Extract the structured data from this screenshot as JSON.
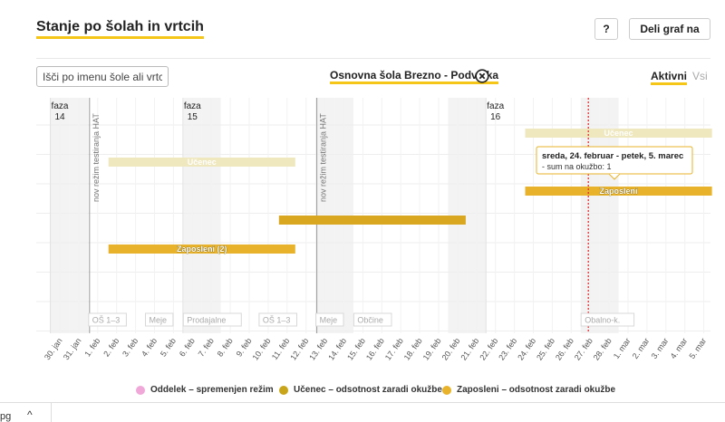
{
  "header": {
    "title": "Stanje po šolah in vrtcih",
    "help_label": "?",
    "share_label": "Deli graf na"
  },
  "filter": {
    "search_placeholder": "Išči po imenu šole ali vrtca",
    "selected_school": "Osnovna šola Brezno - Podvelka",
    "toggle_active": "Aktivni",
    "toggle_all": "Vsi"
  },
  "chart_data": {
    "type": "timeline",
    "x_ticks": [
      "30. jan",
      "31. jan",
      "1. feb",
      "2. feb",
      "3. feb",
      "4. feb",
      "5. feb",
      "6. feb",
      "7. feb",
      "8. feb",
      "9. feb",
      "10. feb",
      "11. feb",
      "12. feb",
      "13. feb",
      "14. feb",
      "15. feb",
      "16. feb",
      "17. feb",
      "18. feb",
      "19. feb",
      "20. feb",
      "21. feb",
      "22. feb",
      "23. feb",
      "24. feb",
      "25. feb",
      "26. feb",
      "27. feb",
      "28. feb",
      "1. mar",
      "2. mar",
      "3. mar",
      "4. mar",
      "5. mar"
    ],
    "phases": [
      {
        "label": "faza",
        "number": "14",
        "start": "30. jan"
      },
      {
        "label": "faza",
        "number": "15",
        "start": "6. feb"
      },
      {
        "label": "faza",
        "number": "16",
        "start": "22. feb"
      }
    ],
    "vertical_markers": [
      {
        "label": "nov režim testiranja HAT",
        "date": "1. feb"
      },
      {
        "label": "nov režim testiranja HAT",
        "date": "13. feb"
      }
    ],
    "today_marker": "27. feb",
    "bars": [
      {
        "start": "24. feb",
        "end": "5. mar",
        "row": 5,
        "label": "Učenec",
        "category": "ucenec",
        "faded": true
      },
      {
        "start": "2. feb",
        "end": "11. feb",
        "row": 4,
        "label": "Učenec",
        "category": "ucenec",
        "faded": true
      },
      {
        "start": "24. feb",
        "end": "5. mar",
        "row": 3,
        "label": "Zaposleni",
        "category": "zaposleni",
        "faded": false
      },
      {
        "start": "11. feb",
        "end": "20. feb",
        "row": 2,
        "label": "",
        "category": "ucenec",
        "faded": false
      },
      {
        "start": "2. feb",
        "end": "11. feb",
        "row": 1,
        "label": "Zaposleni (2)",
        "category": "zaposleni",
        "faded": false
      }
    ],
    "events": [
      {
        "label": "OŠ 1–3",
        "date": "1. feb"
      },
      {
        "label": "Meje",
        "date": "4. feb"
      },
      {
        "label": "Prodajalne",
        "date": "6. feb"
      },
      {
        "label": "OŠ 1–3",
        "date": "10. feb"
      },
      {
        "label": "Meje",
        "date": "13. feb"
      },
      {
        "label": "Občine",
        "date": "15. feb"
      },
      {
        "label": "Obalno-k.",
        "date": "27. feb"
      }
    ],
    "tooltip": {
      "title": "sreda, 24. februar - petek, 5. marec",
      "line": "- sum na okužbo: 1"
    },
    "colors": {
      "zaposleni": "#e8b32b",
      "ucenec": "#d9a820",
      "faded": "#efe7bd",
      "today": "#e0242a",
      "weekend": "#f3f3f3",
      "grid": "#eeeeee"
    }
  },
  "legend": [
    {
      "label": "Oddelek – spremenjen režim",
      "color": "#f0a8d8"
    },
    {
      "label": "Učenec – odsotnost zaradi okužbe",
      "color": "#c8a51b"
    },
    {
      "label": "Zaposleni – odsotnost zaradi okužbe",
      "color": "#e8b32b"
    }
  ],
  "browser_bar": {
    "file_fragment": "pg",
    "chevron": "^"
  }
}
